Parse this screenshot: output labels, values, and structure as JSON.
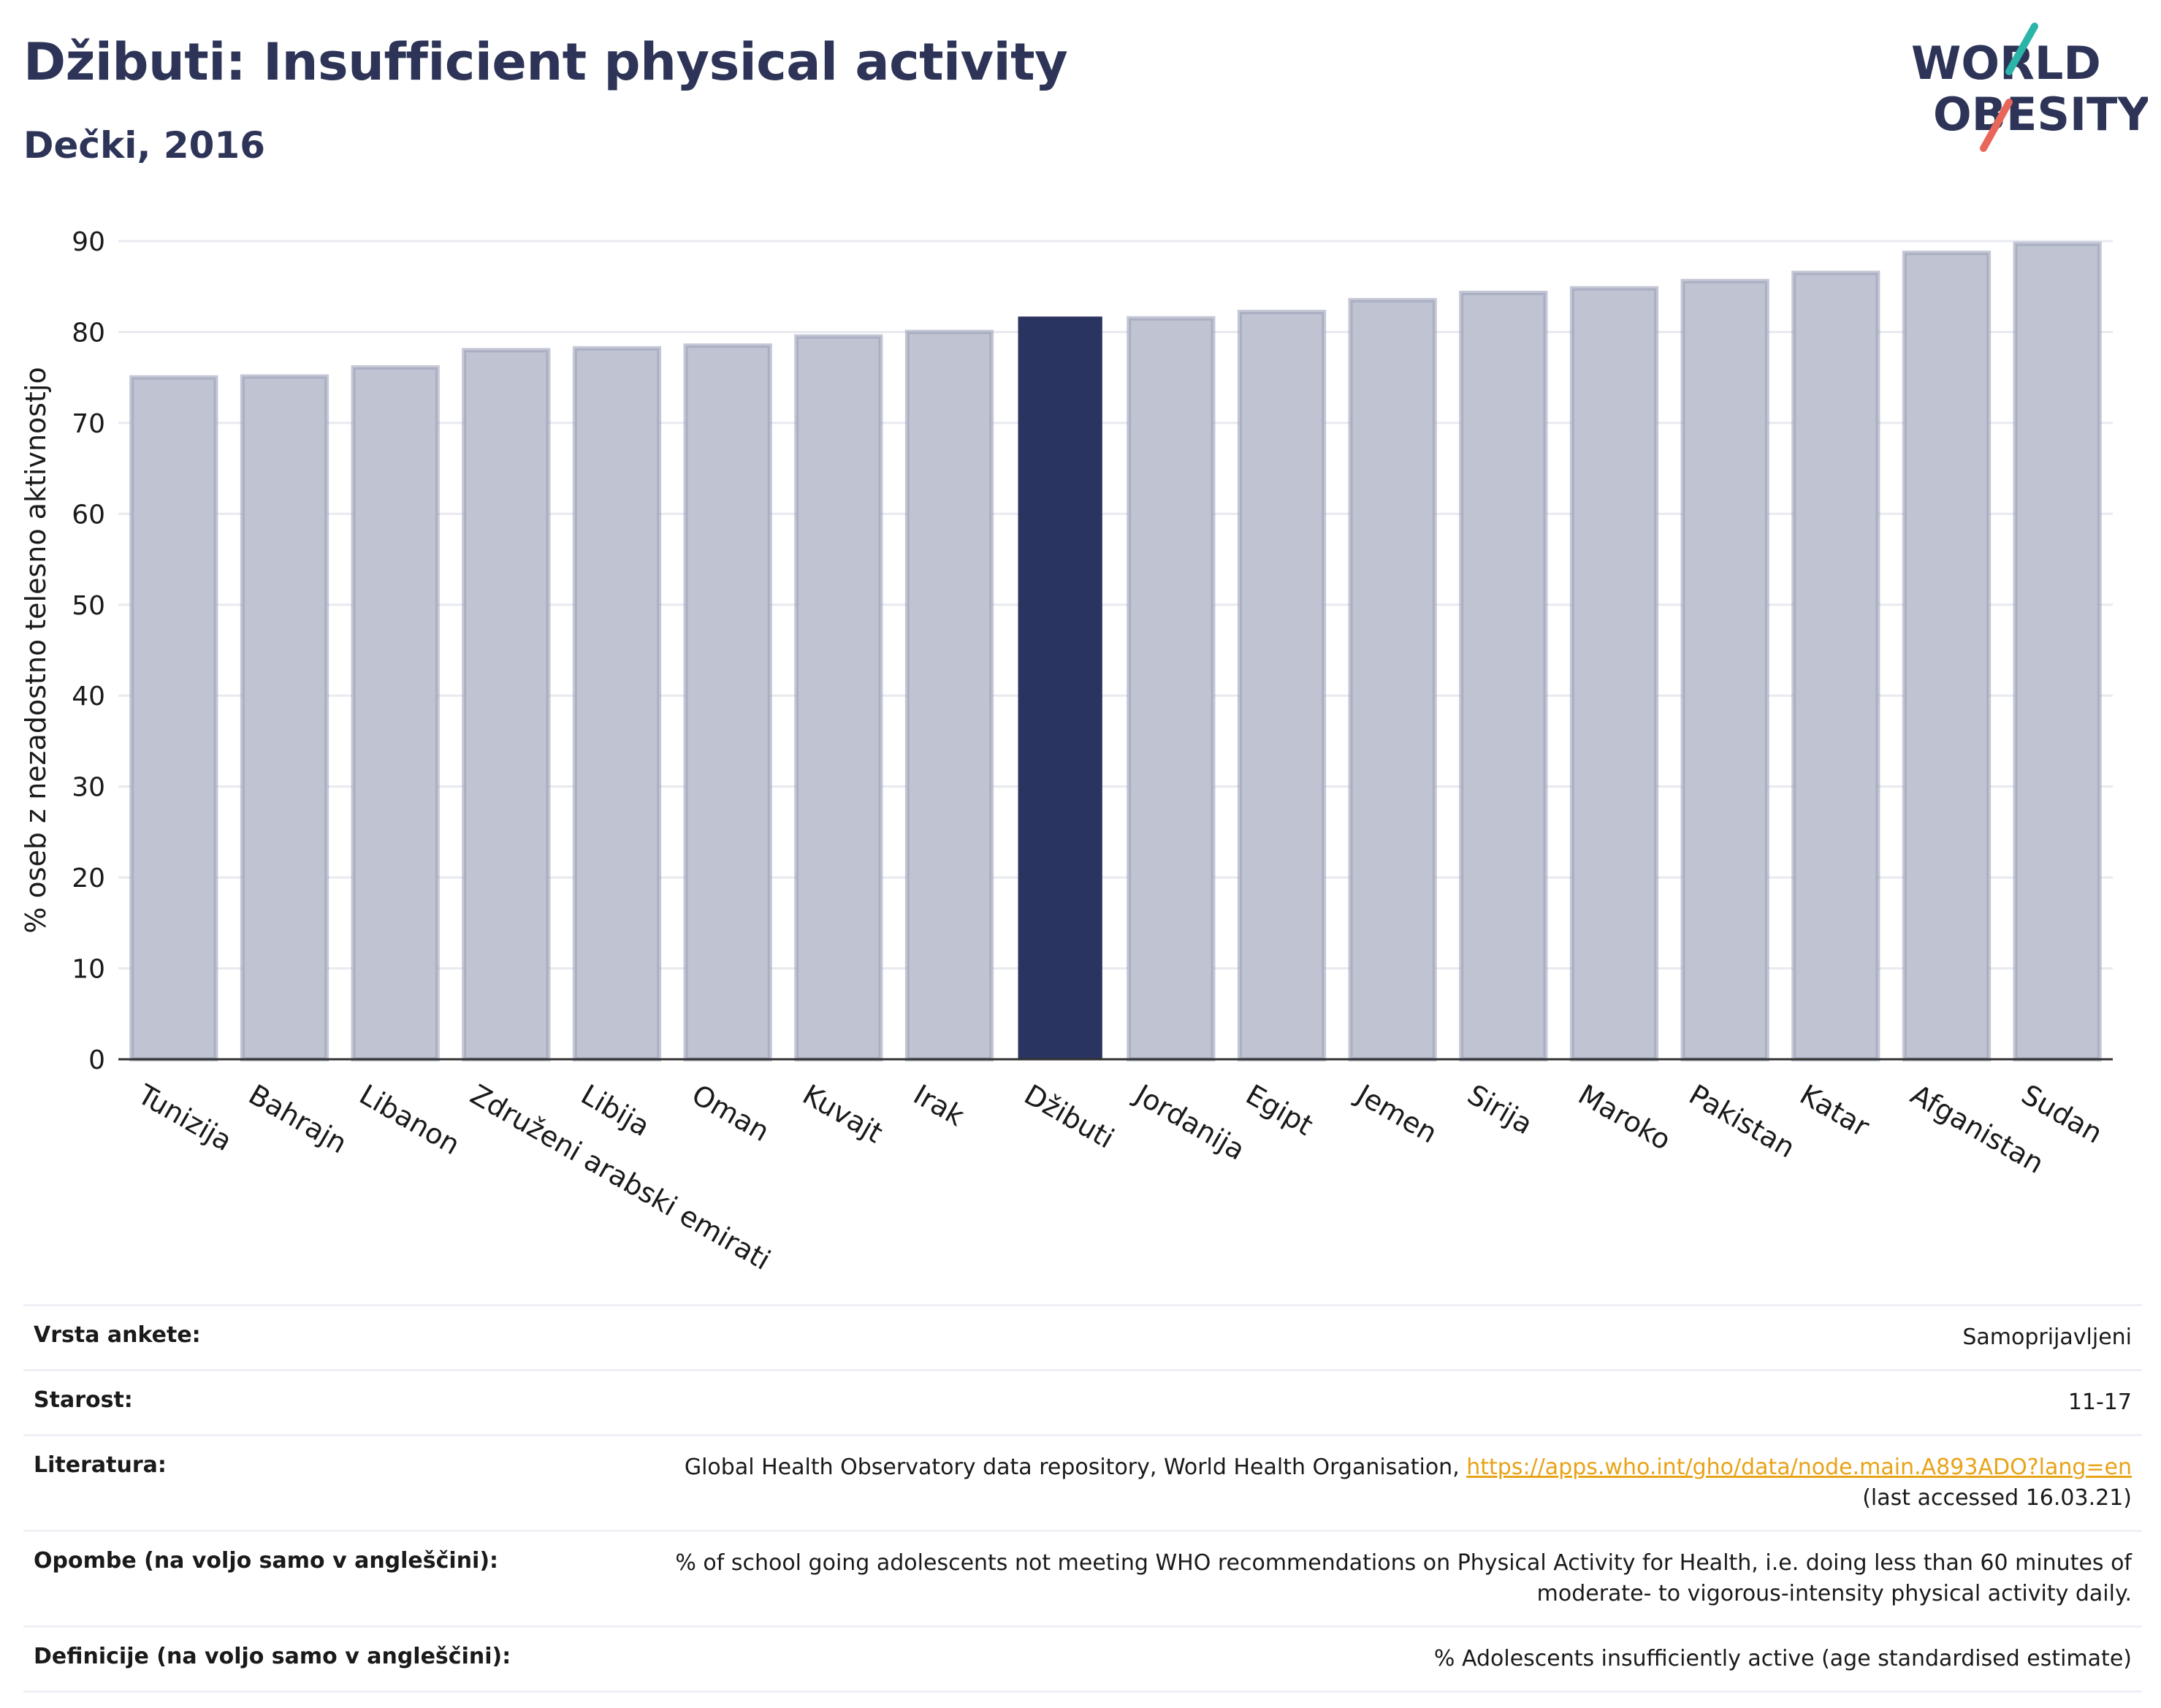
{
  "title": "Džibuti: Insufficient physical activity",
  "subtitle": "Dečki, 2016",
  "logo": {
    "line1": "WORLD",
    "line2": "OBESITY",
    "colors": {
      "navy": "#2d3457",
      "teal": "#2bb5a8",
      "coral": "#e8675a"
    }
  },
  "colors": {
    "bar": "#c0c3d1",
    "bar_border": "#9da1b9",
    "highlight": "#2a3460",
    "grid": "#e9eaf0",
    "axis": "#333333",
    "link": "#e8a317"
  },
  "chart_data": {
    "type": "bar",
    "categories": [
      "Tunizija",
      "Bahrajn",
      "Libanon",
      "Združeni arabski emirati",
      "Libija",
      "Oman",
      "Kuvajt",
      "Irak",
      "Džibuti",
      "Jordanija",
      "Egipt",
      "Jemen",
      "Sirija",
      "Maroko",
      "Pakistan",
      "Katar",
      "Afganistan",
      "Sudan"
    ],
    "values": [
      75.0,
      75.1,
      76.1,
      78.0,
      78.2,
      78.5,
      79.5,
      80.0,
      81.7,
      81.5,
      82.2,
      83.5,
      84.3,
      84.8,
      85.6,
      86.5,
      88.7,
      89.7
    ],
    "highlight": "Džibuti",
    "xlabel": "",
    "ylabel": "% oseb z nezadostno telesno aktivnostjo",
    "ylim": [
      0,
      90
    ],
    "yticks": [
      0,
      10,
      20,
      30,
      40,
      50,
      60,
      70,
      80,
      90
    ],
    "grid": true,
    "legend": "none"
  },
  "meta": {
    "rows": [
      {
        "label": "Vrsta ankete:",
        "value": "Samoprijavljeni"
      },
      {
        "label": "Starost:",
        "value": "11-17"
      },
      {
        "label": "Literatura:",
        "value": "Global Health Observatory data repository, World Health Organisation, ",
        "link": "https://apps.who.int/gho/data/node.main.A893ADO?lang=en",
        "value2": "(last accessed 16.03.21)"
      },
      {
        "label": "Opombe (na voljo samo v angleščini):",
        "value": "% of school going adolescents not meeting WHO recommendations on Physical Activity for Health, i.e. doing less than 60 minutes of moderate- to vigorous-intensity physical activity daily."
      },
      {
        "label": "Definicije (na voljo samo v angleščini):",
        "value": "% Adolescents insufficiently active (age standardised estimate)"
      }
    ]
  }
}
